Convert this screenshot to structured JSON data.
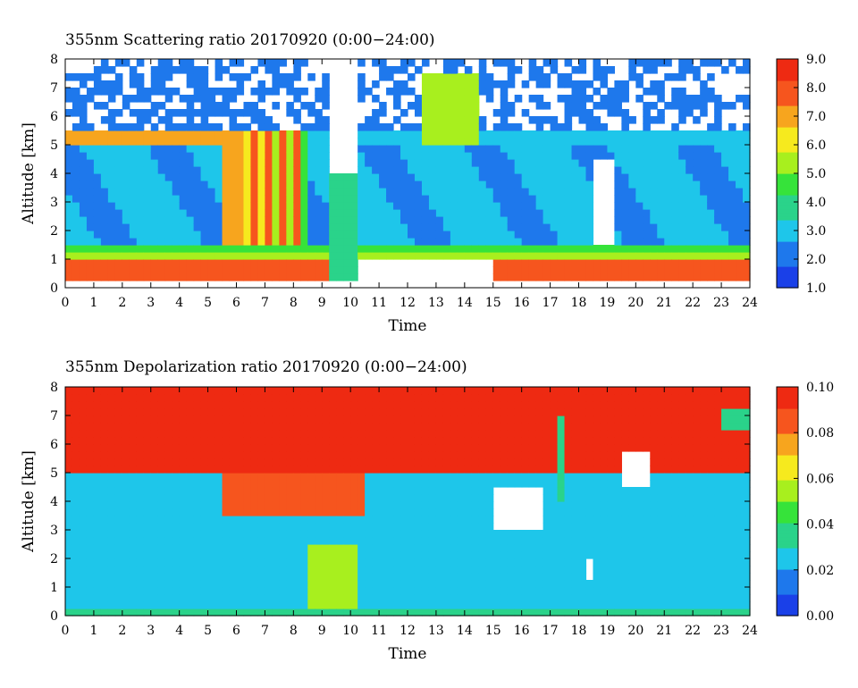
{
  "colors": {
    "scale": [
      "#1a40e8",
      "#1e78ec",
      "#1ec6ea",
      "#2ad38a",
      "#36e33a",
      "#a8ef1e",
      "#f6ea1e",
      "#f7a51e",
      "#f6551e",
      "#ee2a12"
    ],
    "background": "#ffffff",
    "axis": "#000000"
  },
  "chart_data": [
    {
      "type": "heatmap",
      "title": "355nm Scattering ratio  20170920 (0:00−24:00)",
      "xlabel": "Time",
      "ylabel": "Altitude [km]",
      "xlim": [
        0,
        24
      ],
      "ylim": [
        0,
        8
      ],
      "x_ticks": [
        "0",
        "1",
        "2",
        "3",
        "4",
        "5",
        "6",
        "7",
        "8",
        "9",
        "10",
        "11",
        "12",
        "13",
        "14",
        "15",
        "16",
        "17",
        "18",
        "19",
        "20",
        "21",
        "22",
        "23",
        "24"
      ],
      "y_ticks": [
        "0",
        "1",
        "2",
        "3",
        "4",
        "5",
        "6",
        "7",
        "8"
      ],
      "colorbar": {
        "range": [
          1.0,
          9.0
        ],
        "ticks": [
          "1.0",
          "2.0",
          "3.0",
          "4.0",
          "5.0",
          "6.0",
          "7.0",
          "8.0",
          "9.0"
        ]
      }
    },
    {
      "type": "heatmap",
      "title": "355nm Depolarization ratio  20170920 (0:00−24:00)",
      "xlabel": "Time",
      "ylabel": "Altitude [km]",
      "xlim": [
        0,
        24
      ],
      "ylim": [
        0,
        8
      ],
      "x_ticks": [
        "0",
        "1",
        "2",
        "3",
        "4",
        "5",
        "6",
        "7",
        "8",
        "9",
        "10",
        "11",
        "12",
        "13",
        "14",
        "15",
        "16",
        "17",
        "18",
        "19",
        "20",
        "21",
        "22",
        "23",
        "24"
      ],
      "y_ticks": [
        "0",
        "1",
        "2",
        "3",
        "4",
        "5",
        "6",
        "7",
        "8"
      ],
      "colorbar": {
        "range": [
          0.0,
          0.1
        ],
        "ticks": [
          "0.00",
          "0.02",
          "0.04",
          "0.06",
          "0.08",
          "0.10"
        ]
      }
    }
  ]
}
